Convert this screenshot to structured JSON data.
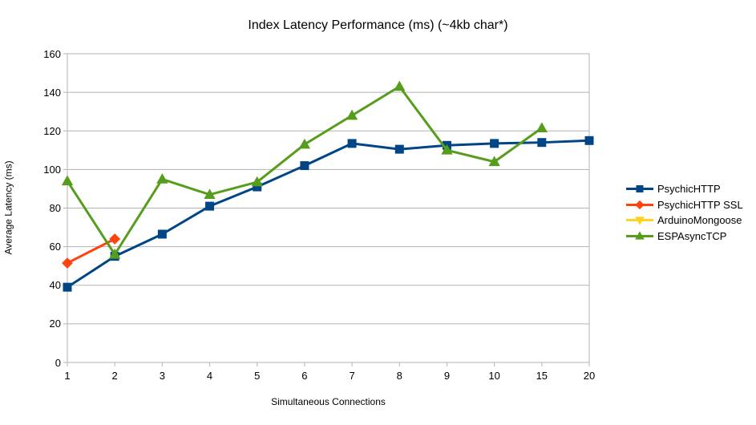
{
  "chart_data": {
    "type": "line",
    "title": "Index Latency Performance (ms) (~4kb char*)",
    "xlabel": "Simultaneous Connections",
    "ylabel": "Average Latency (ms)",
    "categories": [
      "1",
      "2",
      "3",
      "4",
      "5",
      "6",
      "7",
      "8",
      "9",
      "10",
      "15",
      "20"
    ],
    "ylim": [
      0,
      160
    ],
    "y_ticks": [
      0,
      20,
      40,
      60,
      80,
      100,
      120,
      140,
      160
    ],
    "grid": true,
    "legend_position": "right",
    "series": [
      {
        "name": "PsychicHTTP",
        "color": "#004586",
        "marker": "square",
        "values": [
          39,
          55,
          66.5,
          81,
          91,
          102,
          113.5,
          110.5,
          112.5,
          113.5,
          114,
          115
        ]
      },
      {
        "name": "PsychicHTTP SSL",
        "color": "#FF420E",
        "marker": "diamond",
        "values": [
          51.5,
          64,
          null,
          null,
          null,
          null,
          null,
          null,
          null,
          null,
          null,
          null
        ]
      },
      {
        "name": "ArduinoMongoose",
        "color": "#FFD320",
        "marker": "triangle-down",
        "values": [
          null,
          null,
          null,
          null,
          null,
          null,
          null,
          null,
          null,
          null,
          null,
          null
        ]
      },
      {
        "name": "ESPAsyncTCP",
        "color": "#579D1C",
        "marker": "triangle-up",
        "values": [
          94,
          56,
          95,
          87,
          93.5,
          113,
          128,
          143,
          110,
          104,
          121.5,
          null
        ]
      }
    ],
    "axis_color": "#b3b3b3",
    "grid_color": "#b3b3b3",
    "background": "#ffffff"
  }
}
